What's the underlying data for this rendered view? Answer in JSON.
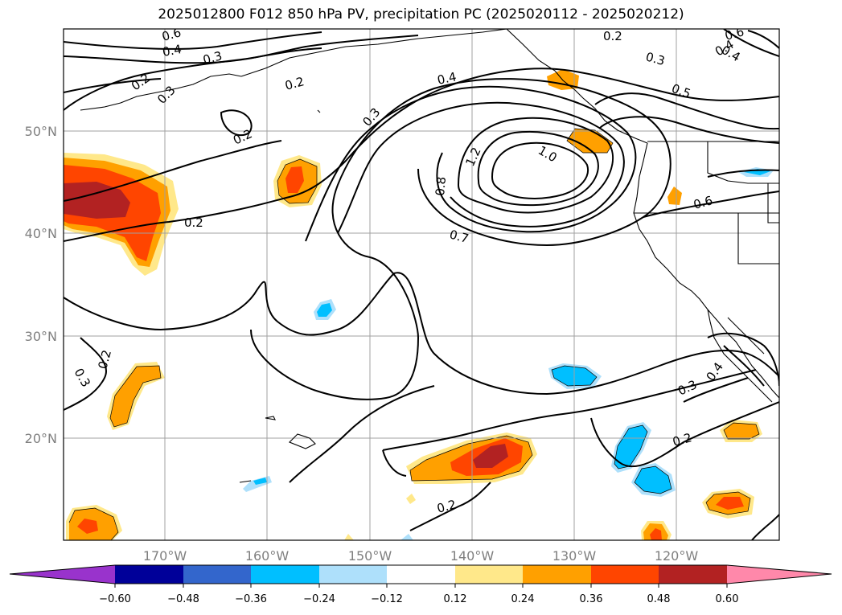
{
  "title": "2025012800 F012 850 hPa PV, precipitation PC (2025020112 - 2025020212)",
  "map": {
    "lon_labels": [
      "170°W",
      "160°W",
      "150°W",
      "140°W",
      "130°W",
      "120°W"
    ],
    "lat_labels": [
      "50°N",
      "40°N",
      "30°N",
      "20°N"
    ],
    "contour_labels": [
      "0.6",
      "0.4",
      "0.3",
      "0.2",
      "0.3",
      "0.2",
      "0.2",
      "0.2",
      "0.3",
      "0.4",
      "1.2",
      "1.0",
      "0.8",
      "0.7",
      "0.2",
      "0.3",
      "0.4",
      "0.5",
      "0.6",
      "0.3",
      "0.4",
      "0.2",
      "0.2",
      "0.6",
      "0.4",
      "0.2",
      "0.3"
    ]
  },
  "colorbar": {
    "ticks": [
      "−0.60",
      "−0.48",
      "−0.36",
      "−0.24",
      "−0.12",
      "0.12",
      "0.24",
      "0.36",
      "0.48",
      "0.60"
    ],
    "colors": [
      "#9933cc",
      "#000099",
      "#3366cc",
      "#00bfff",
      "#aee0fb",
      "#ffffff",
      "#ffe88a",
      "#ffa000",
      "#ff4500",
      "#b22222",
      "#ff88aa"
    ]
  }
}
